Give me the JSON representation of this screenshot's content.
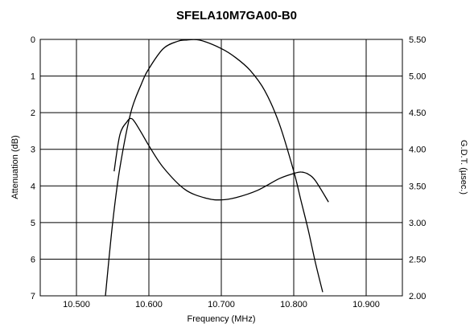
{
  "chart_data": {
    "type": "line",
    "title": "SFELA10M7GA00-B0",
    "xlabel": "Frequency (MHz)",
    "ylabel": "Attenuation (dB)",
    "y2label": "G.D.T. (µsec.)",
    "xlim": [
      10.45,
      10.95
    ],
    "ylim": [
      0,
      7
    ],
    "y_inverted": true,
    "y2lim": [
      2.0,
      5.5
    ],
    "grid": true,
    "x_ticks": [
      "10.500",
      "10.600",
      "10.700",
      "10.800",
      "10.900"
    ],
    "y_ticks": [
      "0",
      "1",
      "2",
      "3",
      "4",
      "5",
      "6",
      "7"
    ],
    "y2_ticks": [
      "5.50",
      "5.00",
      "4.50",
      "4.00",
      "3.50",
      "3.00",
      "2.50",
      "2.00"
    ],
    "series": [
      {
        "axis": "left",
        "x": [
          10.54,
          10.55,
          10.56,
          10.575,
          10.59,
          10.6,
          10.62,
          10.64,
          10.65,
          10.67,
          10.7,
          10.72,
          10.74,
          10.76,
          10.78,
          10.8,
          10.81,
          10.82,
          10.83,
          10.84
        ],
        "y": [
          7.0,
          5.0,
          3.5,
          2.0,
          1.2,
          0.8,
          0.25,
          0.05,
          0.02,
          0.02,
          0.25,
          0.5,
          0.85,
          1.4,
          2.3,
          3.6,
          4.4,
          5.2,
          6.1,
          6.9
        ]
      },
      {
        "axis": "right",
        "x": [
          10.552,
          10.56,
          10.57,
          10.575,
          10.58,
          10.59,
          10.6,
          10.62,
          10.65,
          10.68,
          10.7,
          10.72,
          10.75,
          10.78,
          10.8,
          10.81,
          10.82,
          10.83,
          10.848
        ],
        "y": [
          3.7,
          4.2,
          4.38,
          4.42,
          4.38,
          4.22,
          4.05,
          3.75,
          3.45,
          3.33,
          3.31,
          3.34,
          3.44,
          3.6,
          3.67,
          3.69,
          3.66,
          3.57,
          3.28
        ]
      }
    ]
  }
}
